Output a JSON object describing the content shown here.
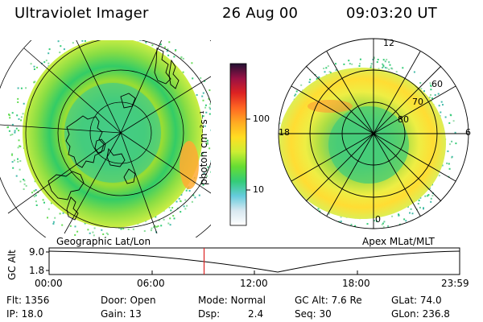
{
  "header": {
    "instrument": "Ultraviolet Imager",
    "date": "26 Aug 00",
    "time": "09:03:20 UT"
  },
  "colorbar": {
    "label": "photon cm⁻²s⁻¹",
    "ticks": [
      "100",
      "10"
    ]
  },
  "left_panel": {
    "label": "Geographic Lat/Lon"
  },
  "right_panel": {
    "label": "Apex MLat/MLT",
    "mlt_labels": {
      "top": "12",
      "left": "18",
      "right": "6",
      "bottom": "0"
    },
    "mlat_labels": [
      "60",
      "70",
      "80"
    ]
  },
  "timeline": {
    "y_label": "GC Alt",
    "y_max": "9.0",
    "y_min": "1.8",
    "ticks": [
      "00:00",
      "06:00",
      "12:00",
      "18:00",
      "23:59"
    ],
    "marker_hour": 9.06
  },
  "info": {
    "flt": "Flt: 1356",
    "ip": "IP: 18.0",
    "door": "Door: Open",
    "gain": "Gain: 13",
    "mode": "Mode: Normal",
    "dsp_label": "Dsp:",
    "dsp_value": "2.4",
    "gc_alt": "GC Alt: 7.6 Re",
    "seq": "Seq: 30",
    "glat": "GLat:  74.0",
    "glon": "GLon: 236.8"
  },
  "colors": {
    "colorbar_stops": [
      "#ffffff",
      "#d8e8f0",
      "#66ccdd",
      "#33cc77",
      "#66dd33",
      "#ccee33",
      "#ffdd22",
      "#ffaa22",
      "#ff6622",
      "#dd2222",
      "#991144",
      "#221133"
    ],
    "timeline_marker": "#dd2222",
    "left_ring": "#33cc66",
    "right_ring": "#ddee44"
  }
}
